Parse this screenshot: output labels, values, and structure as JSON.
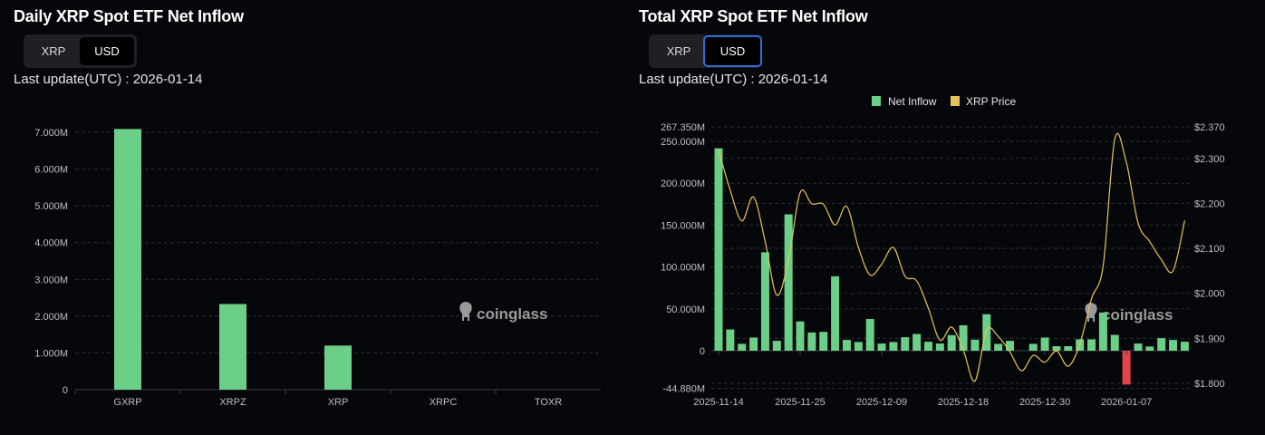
{
  "left": {
    "title": "Daily XRP Spot ETF Net Inflow",
    "toggle": {
      "options": [
        "XRP",
        "USD"
      ],
      "selected": "USD"
    },
    "last_update": "Last update(UTC) : 2026-01-14"
  },
  "right": {
    "title": "Total XRP Spot ETF Net Inflow",
    "toggle": {
      "options": [
        "XRP",
        "USD"
      ],
      "selected": "USD"
    },
    "last_update": "Last update(UTC) : 2026-01-14"
  },
  "watermark": "coinglass",
  "colors": {
    "positive": "#6ccf87",
    "negative": "#e5414b",
    "price": "#e8c35a",
    "grid": "#2a2c33",
    "background": "#06070b"
  },
  "chart_data": [
    {
      "type": "bar",
      "categories": [
        "GXRP",
        "XRPZ",
        "XRP",
        "XRPC",
        "TOXR"
      ],
      "values": [
        7090000,
        2330000,
        1200000,
        0,
        0
      ],
      "yticks": [
        "0",
        "1.000M",
        "2.000M",
        "3.000M",
        "4.000M",
        "5.000M",
        "6.000M",
        "7.000M"
      ],
      "ylim": [
        0,
        7000000
      ],
      "grid": true
    },
    {
      "type": "bar+line",
      "legend": [
        "Net Inflow",
        "XRP Price"
      ],
      "legend_position": "top-center",
      "x_tick_labels": [
        "2025-11-14",
        "2025-11-25",
        "2025-12-09",
        "2025-12-18",
        "2025-12-30",
        "2026-01-07"
      ],
      "x_tick_every": 7,
      "series": [
        {
          "name": "Net Inflow",
          "axis": "left",
          "unit": "USD M",
          "values": [
            241.8,
            25.4,
            8.2,
            15.7,
            117.5,
            11.8,
            162.9,
            35,
            21.8,
            22.5,
            88.9,
            12.9,
            10.4,
            37.9,
            8.6,
            10.4,
            16.1,
            20,
            10.7,
            8.6,
            18.6,
            30.4,
            13.2,
            43.6,
            8.2,
            11.8,
            0,
            8.2,
            15.7,
            5.4,
            5.4,
            13.6,
            13.6,
            45.7,
            18.9,
            -40.4,
            8.6,
            5,
            15,
            12.9,
            10.7
          ]
        },
        {
          "name": "XRP Price",
          "axis": "right",
          "unit": "USD",
          "values": [
            2.318,
            2.229,
            2.161,
            2.214,
            2.115,
            1.996,
            2.075,
            2.224,
            2.199,
            2.198,
            2.152,
            2.193,
            2.102,
            2.041,
            2.065,
            2.102,
            2.038,
            2.028,
            1.967,
            1.896,
            1.925,
            1.874,
            1.805,
            1.918,
            1.904,
            1.87,
            1.828,
            1.862,
            1.847,
            1.872,
            1.838,
            1.887,
            1.988,
            2.061,
            2.343,
            2.29,
            2.156,
            2.115,
            2.075,
            2.05,
            2.162
          ]
        }
      ],
      "yticks_left": [
        "-44.880M",
        "0",
        "50.000M",
        "100.000M",
        "150.000M",
        "200.000M",
        "250.000M",
        "267.350M"
      ],
      "yticks_left_values": [
        -44.88,
        0,
        50,
        100,
        150,
        200,
        250,
        267.35
      ],
      "yticks_right": [
        "$1.800",
        "$1.900",
        "$2.000",
        "$2.100",
        "$2.200",
        "$2.300",
        "$2.370"
      ],
      "yticks_right_values": [
        1.8,
        1.9,
        2.0,
        2.1,
        2.2,
        2.3,
        2.37
      ],
      "ylim_left": [
        -44.88,
        267.35
      ],
      "ylim_right": [
        1.8,
        2.37
      ],
      "grid": true
    }
  ]
}
